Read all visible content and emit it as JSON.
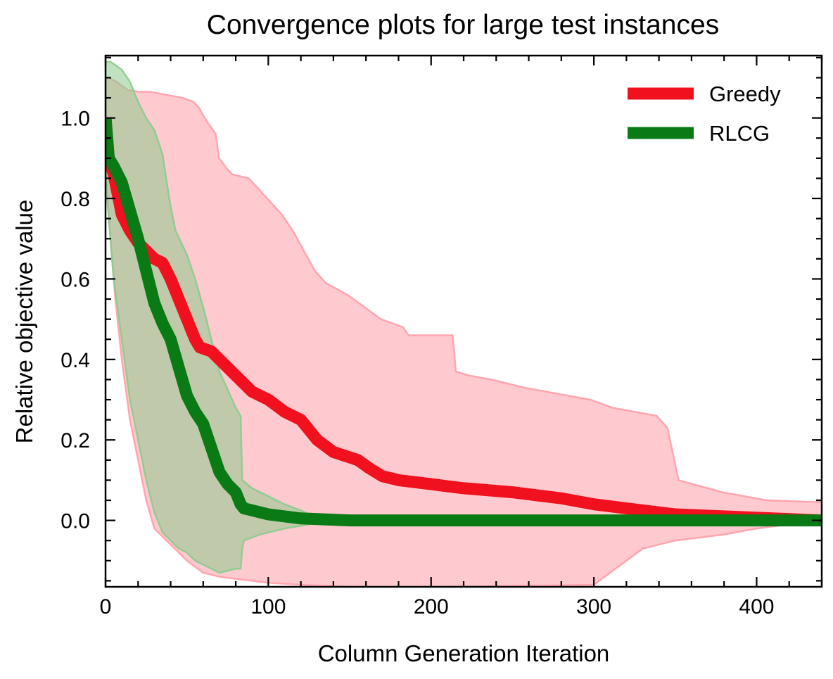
{
  "chart_data": {
    "type": "line",
    "title": "Convergence plots for large test instances",
    "xlabel": "Column Generation Iteration",
    "ylabel": "Relative objective value",
    "xlim": [
      0,
      440
    ],
    "ylim": [
      -0.165,
      1.155
    ],
    "xticks": [
      0,
      100,
      200,
      300,
      400
    ],
    "xtick_labels": [
      "0",
      "100",
      "200",
      "300",
      "400"
    ],
    "xminor_step": 20,
    "yticks": [
      0.0,
      0.2,
      0.4,
      0.6,
      0.8,
      1.0
    ],
    "ytick_labels": [
      "0.0",
      "0.2",
      "0.4",
      "0.6",
      "0.8",
      "1.0"
    ],
    "yminor_step": 0.05,
    "grid": false,
    "legend_position": "top-right",
    "series": [
      {
        "name": "Greedy",
        "color": "#f0101e",
        "band_color": "#ff9ea8",
        "mean": [
          [
            0,
            1.0
          ],
          [
            2,
            0.9
          ],
          [
            5,
            0.86
          ],
          [
            8,
            0.8
          ],
          [
            10,
            0.76
          ],
          [
            15,
            0.72
          ],
          [
            20,
            0.69
          ],
          [
            25,
            0.67
          ],
          [
            30,
            0.65
          ],
          [
            35,
            0.64
          ],
          [
            40,
            0.6
          ],
          [
            45,
            0.55
          ],
          [
            50,
            0.5
          ],
          [
            55,
            0.45
          ],
          [
            58,
            0.43
          ],
          [
            65,
            0.42
          ],
          [
            75,
            0.38
          ],
          [
            85,
            0.34
          ],
          [
            90,
            0.32
          ],
          [
            100,
            0.3
          ],
          [
            110,
            0.27
          ],
          [
            120,
            0.25
          ],
          [
            130,
            0.2
          ],
          [
            140,
            0.17
          ],
          [
            155,
            0.15
          ],
          [
            162,
            0.13
          ],
          [
            170,
            0.11
          ],
          [
            180,
            0.1
          ],
          [
            200,
            0.09
          ],
          [
            220,
            0.08
          ],
          [
            250,
            0.07
          ],
          [
            280,
            0.055
          ],
          [
            300,
            0.04
          ],
          [
            320,
            0.03
          ],
          [
            350,
            0.015
          ],
          [
            380,
            0.01
          ],
          [
            410,
            0.005
          ],
          [
            440,
            0.0
          ]
        ],
        "upper": [
          [
            0,
            1.1
          ],
          [
            3,
            1.1
          ],
          [
            10,
            1.09
          ],
          [
            20,
            1.07
          ],
          [
            30,
            1.065
          ],
          [
            40,
            1.065
          ],
          [
            50,
            1.06
          ],
          [
            60,
            1.055
          ],
          [
            70,
            1.05
          ],
          [
            80,
            1.04
          ],
          [
            85,
            1.025
          ],
          [
            90,
            1.0
          ],
          [
            95,
            0.98
          ],
          [
            100,
            0.96
          ],
          [
            103,
            0.9
          ],
          [
            110,
            0.875
          ],
          [
            115,
            0.86
          ],
          [
            130,
            0.85
          ],
          [
            140,
            0.82
          ],
          [
            150,
            0.79
          ],
          [
            160,
            0.76
          ],
          [
            170,
            0.72
          ],
          [
            180,
            0.67
          ],
          [
            190,
            0.62
          ],
          [
            200,
            0.59
          ],
          [
            220,
            0.56
          ],
          [
            250,
            0.5
          ],
          [
            270,
            0.48
          ],
          [
            275,
            0.46
          ],
          [
            315,
            0.46
          ],
          [
            318,
            0.37
          ],
          [
            330,
            0.36
          ],
          [
            350,
            0.35
          ],
          [
            380,
            0.33
          ],
          [
            400,
            0.32
          ],
          [
            420,
            0.31
          ],
          [
            440,
            0.3
          ],
          [
            460,
            0.28
          ],
          [
            480,
            0.27
          ],
          [
            500,
            0.26
          ],
          [
            510,
            0.23
          ],
          [
            520,
            0.1
          ],
          [
            540,
            0.085
          ],
          [
            560,
            0.07
          ],
          [
            600,
            0.05
          ],
          [
            650,
            0.045
          ]
        ],
        "upper_x_scale": 0.6769,
        "lower": [
          [
            0,
            0.88
          ],
          [
            3,
            0.7
          ],
          [
            6,
            0.55
          ],
          [
            10,
            0.4
          ],
          [
            15,
            0.25
          ],
          [
            20,
            0.15
          ],
          [
            25,
            0.05
          ],
          [
            30,
            -0.02
          ],
          [
            40,
            -0.06
          ],
          [
            50,
            -0.1
          ],
          [
            60,
            -0.13
          ],
          [
            70,
            -0.14
          ],
          [
            80,
            -0.145
          ],
          [
            90,
            -0.15
          ],
          [
            100,
            -0.155
          ],
          [
            120,
            -0.16
          ],
          [
            150,
            -0.165
          ],
          [
            200,
            -0.165
          ],
          [
            250,
            -0.163
          ],
          [
            300,
            -0.16
          ],
          [
            320,
            -0.1
          ],
          [
            330,
            -0.07
          ],
          [
            350,
            -0.05
          ],
          [
            380,
            -0.035
          ],
          [
            400,
            -0.02
          ],
          [
            420,
            -0.01
          ],
          [
            440,
            0.0
          ]
        ]
      },
      {
        "name": "RLCG",
        "color": "#0a7a14",
        "band_color": "#8ccb8c",
        "mean": [
          [
            0,
            1.0
          ],
          [
            2,
            0.9
          ],
          [
            5,
            0.88
          ],
          [
            10,
            0.84
          ],
          [
            15,
            0.77
          ],
          [
            20,
            0.7
          ],
          [
            25,
            0.62
          ],
          [
            30,
            0.54
          ],
          [
            35,
            0.49
          ],
          [
            40,
            0.45
          ],
          [
            45,
            0.38
          ],
          [
            50,
            0.31
          ],
          [
            55,
            0.27
          ],
          [
            60,
            0.24
          ],
          [
            65,
            0.18
          ],
          [
            70,
            0.12
          ],
          [
            75,
            0.09
          ],
          [
            80,
            0.07
          ],
          [
            83,
            0.04
          ],
          [
            85,
            0.03
          ],
          [
            100,
            0.015
          ],
          [
            120,
            0.005
          ],
          [
            150,
            0.0
          ],
          [
            440,
            0.0
          ]
        ],
        "upper": [
          [
            0,
            1.14
          ],
          [
            3,
            1.14
          ],
          [
            10,
            1.12
          ],
          [
            15,
            1.09
          ],
          [
            20,
            1.04
          ],
          [
            25,
            1.0
          ],
          [
            30,
            0.97
          ],
          [
            35,
            0.91
          ],
          [
            38,
            0.83
          ],
          [
            40,
            0.78
          ],
          [
            43,
            0.72
          ],
          [
            50,
            0.66
          ],
          [
            55,
            0.6
          ],
          [
            60,
            0.53
          ],
          [
            65,
            0.45
          ],
          [
            70,
            0.37
          ],
          [
            80,
            0.28
          ],
          [
            83,
            0.26
          ],
          [
            84,
            0.1
          ],
          [
            90,
            0.08
          ],
          [
            100,
            0.06
          ],
          [
            110,
            0.04
          ],
          [
            120,
            0.025
          ],
          [
            125,
            0.015
          ]
        ],
        "lower": [
          [
            0,
            0.85
          ],
          [
            3,
            0.7
          ],
          [
            5,
            0.6
          ],
          [
            10,
            0.45
          ],
          [
            15,
            0.3
          ],
          [
            20,
            0.2
          ],
          [
            25,
            0.1
          ],
          [
            30,
            0.02
          ],
          [
            35,
            -0.03
          ],
          [
            40,
            -0.05
          ],
          [
            45,
            -0.07
          ],
          [
            50,
            -0.08
          ],
          [
            55,
            -0.1
          ],
          [
            60,
            -0.11
          ],
          [
            65,
            -0.12
          ],
          [
            70,
            -0.13
          ],
          [
            80,
            -0.12
          ],
          [
            83,
            -0.12
          ],
          [
            84,
            -0.07
          ],
          [
            85,
            -0.05
          ],
          [
            95,
            -0.035
          ],
          [
            110,
            -0.02
          ],
          [
            125,
            -0.01
          ]
        ]
      }
    ]
  }
}
